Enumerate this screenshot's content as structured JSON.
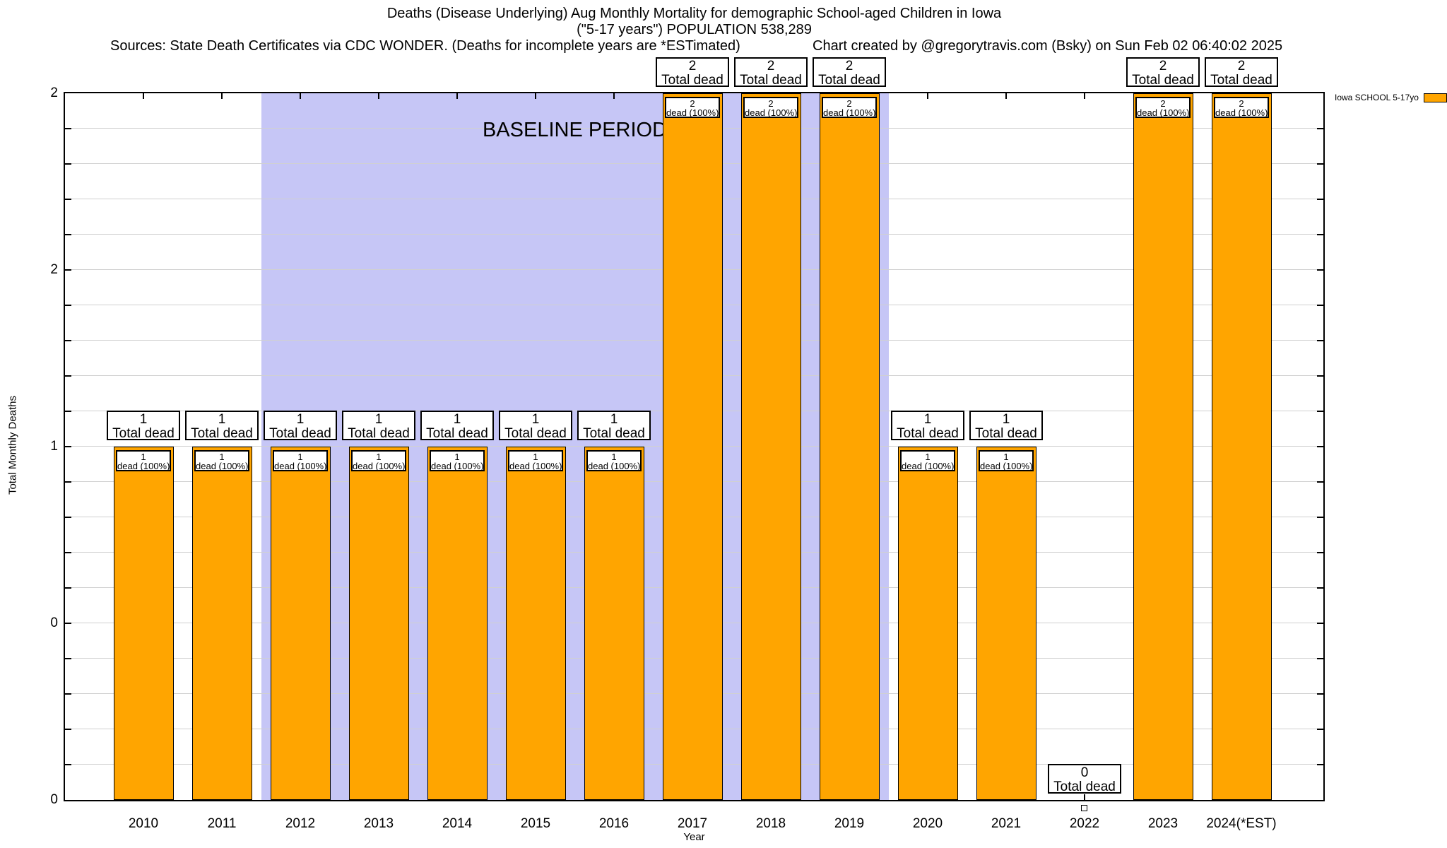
{
  "header": {
    "title_line1": "Deaths (Disease Underlying) Aug Monthly Mortality for demographic School-aged Children in Iowa",
    "title_line2": "(\"5-17 years\") POPULATION 538,289",
    "sources": "Sources: State Death Certificates via CDC WONDER. (Deaths for incomplete years are *ESTimated)",
    "credit": "Chart created by @gregorytravis.com (Bsky) on Sun Feb 02 06:40:02 2025"
  },
  "legend": {
    "label": "Iowa SCHOOL 5-17yo",
    "swatch_color": "#ffa500"
  },
  "y_axis": {
    "title": "Total Monthly Deaths",
    "tick_labels_top_to_bottom": [
      "2",
      "2",
      "1",
      "0",
      "0"
    ]
  },
  "x_axis": {
    "title": "Year"
  },
  "baseline": {
    "label": "BASELINE PERIOD",
    "from_year": 2012,
    "to_year": 2019,
    "band_color": "#c6c6f6"
  },
  "colors": {
    "bar_fill": "#ffa500",
    "bar_border": "#000000",
    "grid": "#d0d0d0",
    "band": "#c6c6f6",
    "label_box_bg": "#ffffff"
  },
  "chart_data": {
    "type": "bar",
    "title": "Deaths (Disease Underlying) Aug Monthly Mortality for demographic School-aged Children in Iowa (\"5-17 years\") POPULATION 538,289",
    "xlabel": "Year",
    "ylabel": "Total Monthly Deaths",
    "ylim": [
      0,
      2
    ],
    "y_tick_values": [
      0,
      0.5,
      1,
      1.5,
      2
    ],
    "y_tick_display": [
      "0",
      "0",
      "1",
      "2",
      "2"
    ],
    "grid": true,
    "legend_position": "top-right-outside",
    "series_name": "Iowa SCHOOL 5-17yo",
    "categories": [
      "2010",
      "2011",
      "2012",
      "2013",
      "2014",
      "2015",
      "2016",
      "2017",
      "2018",
      "2019",
      "2020",
      "2021",
      "2022",
      "2023",
      "2024(*EST)"
    ],
    "values": [
      1,
      1,
      1,
      1,
      1,
      1,
      1,
      2,
      2,
      2,
      1,
      1,
      0,
      2,
      2
    ],
    "baseline_band": {
      "label": "BASELINE PERIOD",
      "x_start": 2011.5,
      "x_end": 2019.5,
      "base_year": 2010
    },
    "bars": [
      {
        "year": "2010",
        "value": 1,
        "top_line1": "1",
        "top_line2": "Total dead",
        "inner_line1": "1",
        "inner_line2": "dead (100%)"
      },
      {
        "year": "2011",
        "value": 1,
        "top_line1": "1",
        "top_line2": "Total dead",
        "inner_line1": "1",
        "inner_line2": "dead (100%)"
      },
      {
        "year": "2012",
        "value": 1,
        "top_line1": "1",
        "top_line2": "Total dead",
        "inner_line1": "1",
        "inner_line2": "dead (100%)"
      },
      {
        "year": "2013",
        "value": 1,
        "top_line1": "1",
        "top_line2": "Total dead",
        "inner_line1": "1",
        "inner_line2": "dead (100%)"
      },
      {
        "year": "2014",
        "value": 1,
        "top_line1": "1",
        "top_line2": "Total dead",
        "inner_line1": "1",
        "inner_line2": "dead (100%)"
      },
      {
        "year": "2015",
        "value": 1,
        "top_line1": "1",
        "top_line2": "Total dead",
        "inner_line1": "1",
        "inner_line2": "dead (100%)"
      },
      {
        "year": "2016",
        "value": 1,
        "top_line1": "1",
        "top_line2": "Total dead",
        "inner_line1": "1",
        "inner_line2": "dead (100%)"
      },
      {
        "year": "2017",
        "value": 2,
        "top_line1": "2",
        "top_line2": "Total dead",
        "inner_line1": "2",
        "inner_line2": "dead (100%)"
      },
      {
        "year": "2018",
        "value": 2,
        "top_line1": "2",
        "top_line2": "Total dead",
        "inner_line1": "2",
        "inner_line2": "dead (100%)"
      },
      {
        "year": "2019",
        "value": 2,
        "top_line1": "2",
        "top_line2": "Total dead",
        "inner_line1": "2",
        "inner_line2": "dead (100%)"
      },
      {
        "year": "2020",
        "value": 1,
        "top_line1": "1",
        "top_line2": "Total dead",
        "inner_line1": "1",
        "inner_line2": "dead (100%)"
      },
      {
        "year": "2021",
        "value": 1,
        "top_line1": "1",
        "top_line2": "Total dead",
        "inner_line1": "1",
        "inner_line2": "dead (100%)"
      },
      {
        "year": "2022",
        "value": 0,
        "top_line1": "0",
        "top_line2": "Total dead",
        "inner_line1": null,
        "inner_line2": null
      },
      {
        "year": "2023",
        "value": 2,
        "top_line1": "2",
        "top_line2": "Total dead",
        "inner_line1": "2",
        "inner_line2": "dead (100%)"
      },
      {
        "year": "2024(*EST)",
        "value": 2,
        "top_line1": "2",
        "top_line2": "Total dead",
        "inner_line1": "2",
        "inner_line2": "dead (100%)"
      }
    ]
  }
}
